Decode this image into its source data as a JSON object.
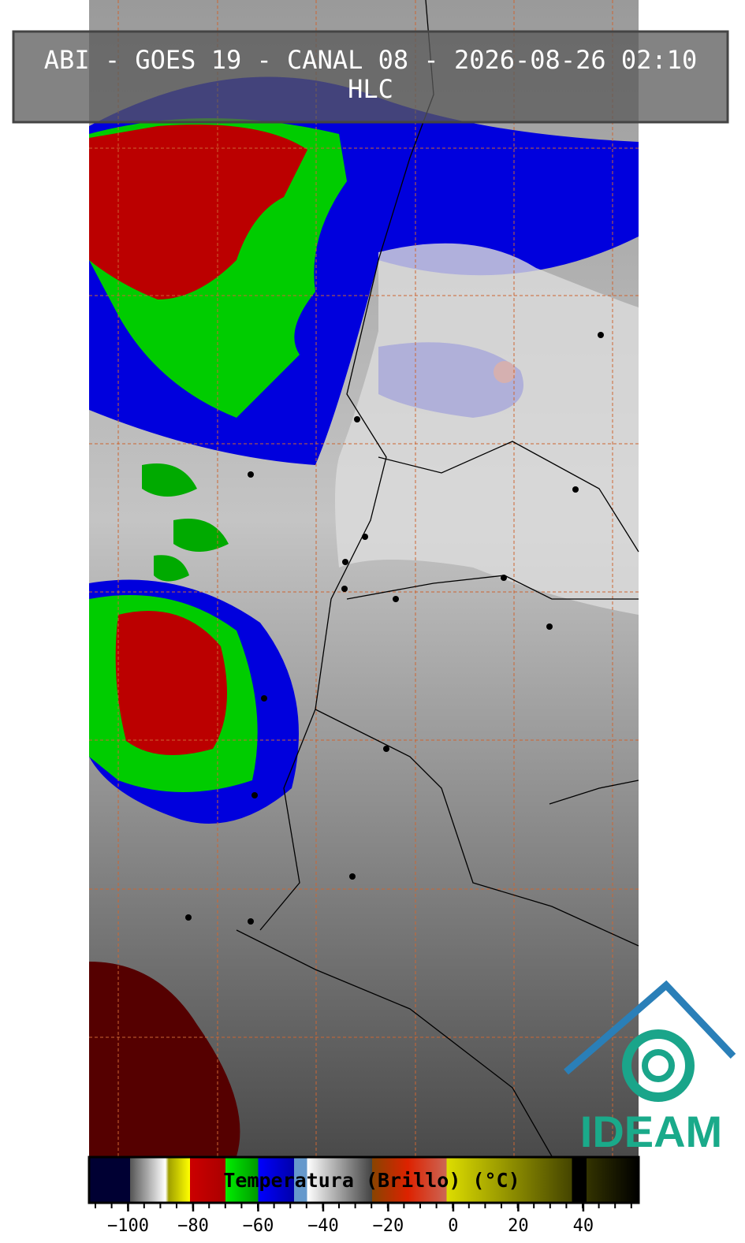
{
  "header": {
    "title": "ABI - GOES 19 - CANAL 08 - 2026-08-26 02:10",
    "subtitle": "HLC"
  },
  "logo": {
    "text": "IDEAM"
  },
  "colorbar": {
    "label": "Temperatura (Brillo) (°C)",
    "lim": [
      -112,
      57
    ],
    "ticks": [
      {
        "value": -100,
        "label": "−100"
      },
      {
        "value": -80,
        "label": "−80"
      },
      {
        "value": -60,
        "label": "−60"
      },
      {
        "value": -40,
        "label": "−40"
      },
      {
        "value": -20,
        "label": "−20"
      },
      0,
      20,
      40
    ],
    "stops": [
      {
        "value": -112,
        "color": "#000033"
      },
      {
        "value": -99.4,
        "color": "#000033"
      },
      {
        "value": -99.4,
        "color": "#555555"
      },
      {
        "value": -88.5,
        "color": "#ffffff"
      },
      {
        "value": -87.5,
        "color": "#a0a000"
      },
      {
        "value": -81,
        "color": "#ffff00"
      },
      {
        "value": -81,
        "color": "#cc0000"
      },
      {
        "value": -70,
        "color": "#aa0000"
      },
      {
        "value": -70,
        "color": "#00ee00"
      },
      {
        "value": -60,
        "color": "#009900"
      },
      {
        "value": -60,
        "color": "#0000ff"
      },
      {
        "value": -49,
        "color": "#0000aa"
      },
      {
        "value": -49,
        "color": "#6699cc"
      },
      {
        "value": -45,
        "color": "#6699cc"
      },
      {
        "value": -45,
        "color": "#ffffff"
      },
      {
        "value": -25,
        "color": "#444444"
      },
      {
        "value": -25,
        "color": "#884400"
      },
      {
        "value": -14,
        "color": "#dd2200"
      },
      {
        "value": -2,
        "color": "#cc6655"
      },
      {
        "value": -2,
        "color": "#dddd00"
      },
      {
        "value": 36.5,
        "color": "#444400"
      },
      {
        "value": 36.5,
        "color": "#000000"
      },
      {
        "value": 41,
        "color": "#000000"
      },
      {
        "value": 41,
        "color": "#333300"
      },
      {
        "value": 57,
        "color": "#000000"
      }
    ]
  }
}
